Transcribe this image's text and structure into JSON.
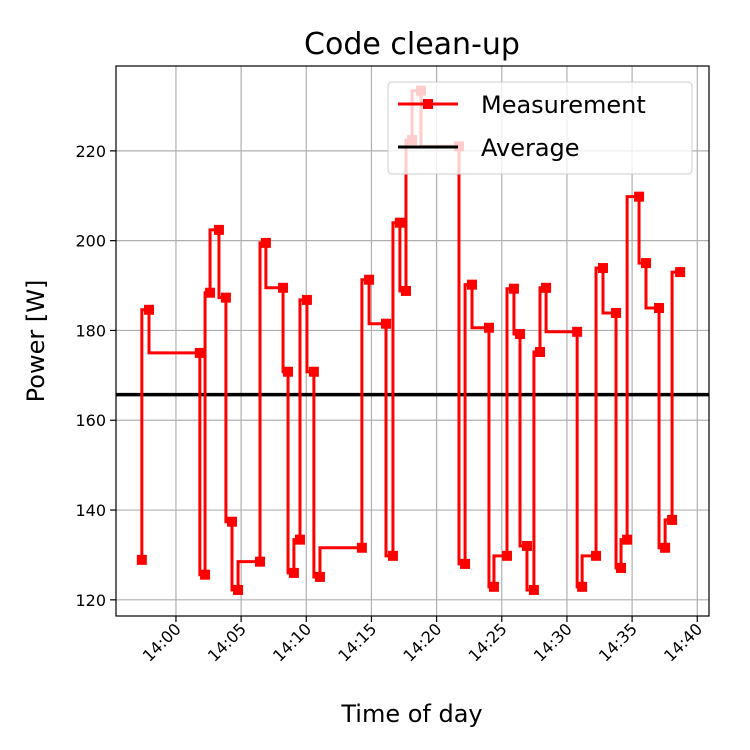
{
  "chart_data": {
    "type": "line",
    "draw_style": "steps-pre",
    "title": "Code clean-up",
    "xlabel": "Time of day",
    "ylabel": "Power [W]",
    "xlim": [
      "13:55:24",
      "14:40:54"
    ],
    "ylim": [
      116.4,
      238.9
    ],
    "grid": true,
    "legend_position": "upper-right",
    "x_ticks": [
      "14:00",
      "14:05",
      "14:10",
      "14:15",
      "14:20",
      "14:25",
      "14:30",
      "14:35",
      "14:40"
    ],
    "y_ticks": [
      120,
      140,
      160,
      180,
      200,
      220
    ],
    "series": [
      {
        "name": "Measurement",
        "color": "#ff0000",
        "marker": "square",
        "x": [
          "13:57:23",
          "13:57:56",
          "14:01:50",
          "14:02:14",
          "14:02:37",
          "14:03:18",
          "14:03:50",
          "14:04:18",
          "14:04:46",
          "14:06:27",
          "14:06:54",
          "14:08:13",
          "14:08:36",
          "14:09:03",
          "14:09:31",
          "14:10:03",
          "14:10:35",
          "14:11:03",
          "14:14:16",
          "14:14:49",
          "14:16:07",
          "14:16:39",
          "14:17:11",
          "14:17:39",
          "14:18:07",
          "14:18:48",
          "14:21:43",
          "14:22:11",
          "14:22:43",
          "14:24:01",
          "14:24:24",
          "14:25:24",
          "14:25:56",
          "14:26:24",
          "14:26:56",
          "14:27:28",
          "14:27:56",
          "14:28:24",
          "14:30:47",
          "14:31:10",
          "14:32:14",
          "14:32:46",
          "14:33:46",
          "14:34:09",
          "14:34:37",
          "14:35:32",
          "14:36:04",
          "14:37:04",
          "14:37:32",
          "14:38:04",
          "14:38:41"
        ],
        "y": [
          128.9,
          184.6,
          175.0,
          125.6,
          188.4,
          202.4,
          187.3,
          137.4,
          122.2,
          128.5,
          199.5,
          189.5,
          170.8,
          126.0,
          133.4,
          186.8,
          170.8,
          125.1,
          131.6,
          191.3,
          181.5,
          129.8,
          204.0,
          188.8,
          222.4,
          233.4,
          221.0,
          128.0,
          190.2,
          180.6,
          122.9,
          129.8,
          189.3,
          179.2,
          132.0,
          122.2,
          175.2,
          189.5,
          179.7,
          122.9,
          129.8,
          193.9,
          183.9,
          127.1,
          133.4,
          209.8,
          195.0,
          185.0,
          131.6,
          137.8,
          193.0
        ]
      },
      {
        "name": "Average",
        "color": "#000000",
        "y_constant": 165.7
      }
    ]
  }
}
